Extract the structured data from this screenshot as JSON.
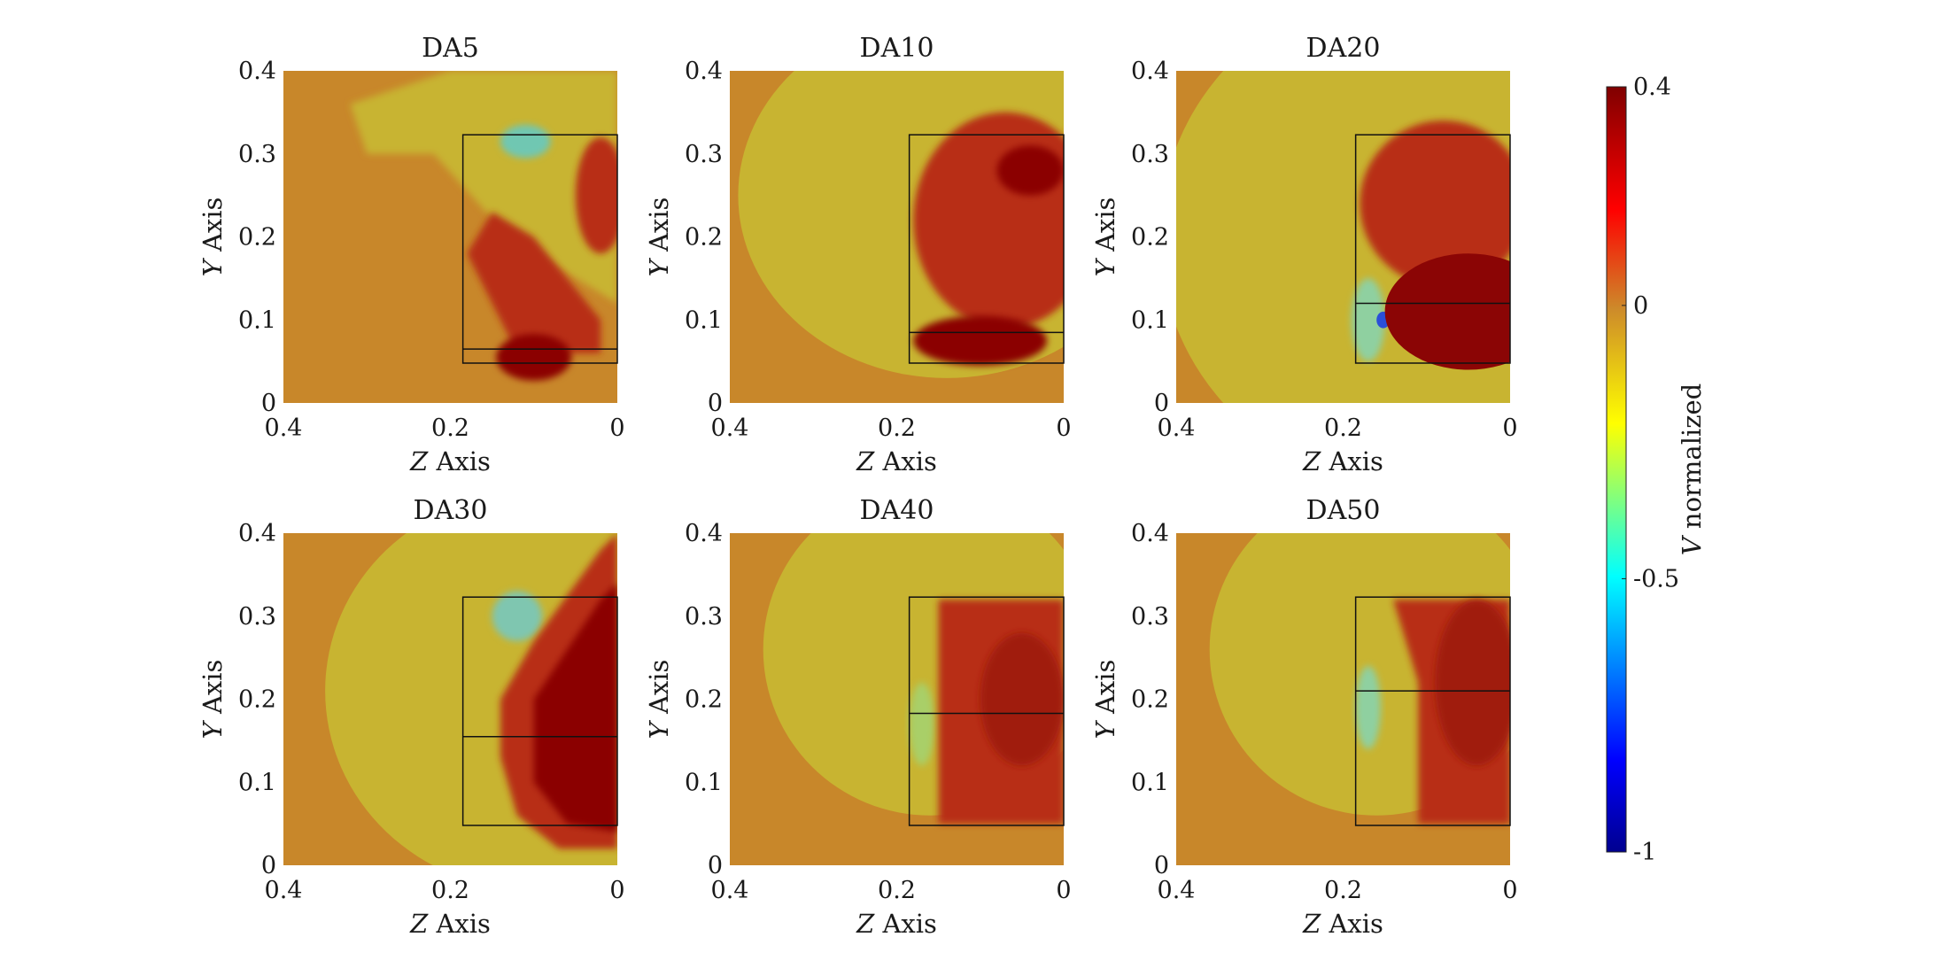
{
  "chart_data": {
    "type": "heatmap",
    "colormap": [
      "#00008f",
      "#0000ff",
      "#00ffff",
      "#ffff00",
      "#ff0000",
      "#800000"
    ],
    "field_colors": {
      "background": "#c8872a",
      "light_band": "#c8b431",
      "dark_core": "#8b0505",
      "red_region": "#b82d18"
    },
    "colorbar": {
      "label_var": "V",
      "label_rest": "normalized",
      "min": -1,
      "max": 0.4,
      "ticks": [
        {
          "value": 0.4,
          "label": "0.4"
        },
        {
          "value": 0,
          "label": "0"
        },
        {
          "value": -0.5,
          "label": "-0.5"
        },
        {
          "value": -1,
          "label": "-1"
        }
      ]
    },
    "panels": [
      {
        "title": "DA5",
        "xlabel_var": "Z",
        "xlabel_rest": "Axis",
        "ylabel_var": "Y",
        "ylabel_rest": "Axis",
        "xlim": [
          0.4,
          0
        ],
        "ylim": [
          0,
          0.4
        ],
        "xticks": [
          {
            "value": 0.4,
            "label": "0.4"
          },
          {
            "value": 0.2,
            "label": "0.2"
          },
          {
            "value": 0,
            "label": "0"
          }
        ],
        "yticks": [
          {
            "value": 0,
            "label": "0"
          },
          {
            "value": 0.1,
            "label": "0.1"
          },
          {
            "value": 0.2,
            "label": "0.2"
          },
          {
            "value": 0.3,
            "label": "0.3"
          },
          {
            "value": 0.4,
            "label": "0.4"
          }
        ],
        "box": {
          "z": [
            0,
            0.185
          ],
          "y": [
            0.048,
            0.323
          ]
        },
        "divider_y": 0.065,
        "blob": "DA5"
      },
      {
        "title": "DA10",
        "xlabel_var": "Z",
        "xlabel_rest": "Axis",
        "ylabel_var": "Y",
        "ylabel_rest": "Axis",
        "xlim": [
          0.4,
          0
        ],
        "ylim": [
          0,
          0.4
        ],
        "xticks": [
          {
            "value": 0.4,
            "label": "0.4"
          },
          {
            "value": 0.2,
            "label": "0.2"
          },
          {
            "value": 0,
            "label": "0"
          }
        ],
        "yticks": [
          {
            "value": 0,
            "label": "0"
          },
          {
            "value": 0.1,
            "label": "0.1"
          },
          {
            "value": 0.2,
            "label": "0.2"
          },
          {
            "value": 0.3,
            "label": "0.3"
          },
          {
            "value": 0.4,
            "label": "0.4"
          }
        ],
        "box": {
          "z": [
            0,
            0.185
          ],
          "y": [
            0.048,
            0.323
          ]
        },
        "divider_y": 0.085,
        "blob": "DA10"
      },
      {
        "title": "DA20",
        "xlabel_var": "Z",
        "xlabel_rest": "Axis",
        "ylabel_var": "Y",
        "ylabel_rest": "Axis",
        "xlim": [
          0.4,
          0
        ],
        "ylim": [
          0,
          0.4
        ],
        "xticks": [
          {
            "value": 0.4,
            "label": "0.4"
          },
          {
            "value": 0.2,
            "label": "0.2"
          },
          {
            "value": 0,
            "label": "0"
          }
        ],
        "yticks": [
          {
            "value": 0,
            "label": "0"
          },
          {
            "value": 0.1,
            "label": "0.1"
          },
          {
            "value": 0.2,
            "label": "0.2"
          },
          {
            "value": 0.3,
            "label": "0.3"
          },
          {
            "value": 0.4,
            "label": "0.4"
          }
        ],
        "box": {
          "z": [
            0,
            0.185
          ],
          "y": [
            0.048,
            0.323
          ]
        },
        "divider_y": 0.12,
        "blob": "DA20"
      },
      {
        "title": "DA30",
        "xlabel_var": "Z",
        "xlabel_rest": "Axis",
        "ylabel_var": "Y",
        "ylabel_rest": "Axis",
        "xlim": [
          0.4,
          0
        ],
        "ylim": [
          0,
          0.4
        ],
        "xticks": [
          {
            "value": 0.4,
            "label": "0.4"
          },
          {
            "value": 0.2,
            "label": "0.2"
          },
          {
            "value": 0,
            "label": "0"
          }
        ],
        "yticks": [
          {
            "value": 0,
            "label": "0"
          },
          {
            "value": 0.1,
            "label": "0.1"
          },
          {
            "value": 0.2,
            "label": "0.2"
          },
          {
            "value": 0.3,
            "label": "0.3"
          },
          {
            "value": 0.4,
            "label": "0.4"
          }
        ],
        "box": {
          "z": [
            0,
            0.185
          ],
          "y": [
            0.048,
            0.323
          ]
        },
        "divider_y": 0.155,
        "blob": "DA30"
      },
      {
        "title": "DA40",
        "xlabel_var": "Z",
        "xlabel_rest": "Axis",
        "ylabel_var": "Y",
        "ylabel_rest": "Axis",
        "xlim": [
          0.4,
          0
        ],
        "ylim": [
          0,
          0.4
        ],
        "xticks": [
          {
            "value": 0.4,
            "label": "0.4"
          },
          {
            "value": 0.2,
            "label": "0.2"
          },
          {
            "value": 0,
            "label": "0"
          }
        ],
        "yticks": [
          {
            "value": 0,
            "label": "0"
          },
          {
            "value": 0.1,
            "label": "0.1"
          },
          {
            "value": 0.2,
            "label": "0.2"
          },
          {
            "value": 0.3,
            "label": "0.3"
          },
          {
            "value": 0.4,
            "label": "0.4"
          }
        ],
        "box": {
          "z": [
            0,
            0.185
          ],
          "y": [
            0.048,
            0.323
          ]
        },
        "divider_y": 0.183,
        "blob": "DA40"
      },
      {
        "title": "DA50",
        "xlabel_var": "Z",
        "xlabel_rest": "Axis",
        "ylabel_var": "Y",
        "ylabel_rest": "Axis",
        "xlim": [
          0.4,
          0
        ],
        "ylim": [
          0,
          0.4
        ],
        "xticks": [
          {
            "value": 0.4,
            "label": "0.4"
          },
          {
            "value": 0.2,
            "label": "0.2"
          },
          {
            "value": 0,
            "label": "0"
          }
        ],
        "yticks": [
          {
            "value": 0,
            "label": "0"
          },
          {
            "value": 0.1,
            "label": "0.1"
          },
          {
            "value": 0.2,
            "label": "0.2"
          },
          {
            "value": 0.3,
            "label": "0.3"
          },
          {
            "value": 0.4,
            "label": "0.4"
          }
        ],
        "box": {
          "z": [
            0,
            0.185
          ],
          "y": [
            0.048,
            0.323
          ]
        },
        "divider_y": 0.21,
        "blob": "DA50"
      }
    ]
  }
}
